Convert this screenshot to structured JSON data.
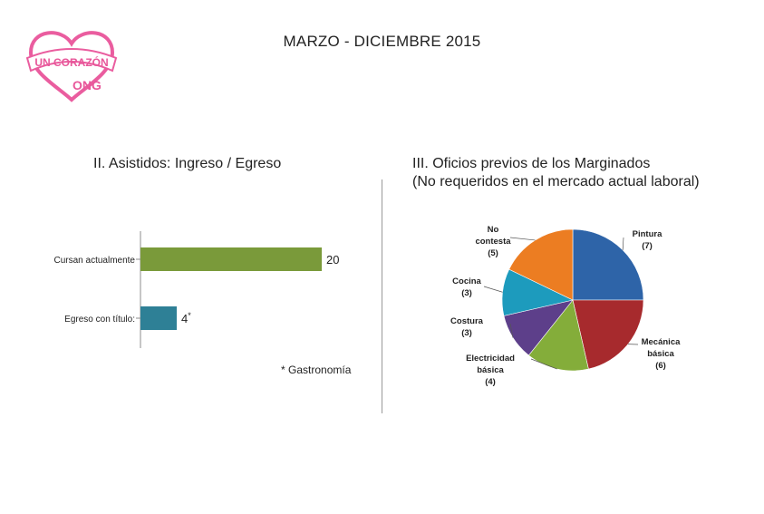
{
  "header": {
    "title": "MARZO - DICIEMBRE 2015",
    "logo_text": "UN CORAZÓN",
    "logo_subtext": "ONG"
  },
  "left_panel": {
    "title": "II. Asistidos: Ingreso / Egreso",
    "footnote": "* Gastronomía"
  },
  "right_panel": {
    "title_line1": "III. Oficios previos de los Marginados",
    "title_line2": "(No requeridos en el mercado actual laboral)"
  },
  "chart_data": [
    {
      "type": "bar",
      "orientation": "horizontal",
      "categories": [
        "Cursan actualmente",
        "Egreso con título:"
      ],
      "values": [
        20,
        4
      ],
      "value_labels": [
        "20",
        "4*"
      ],
      "colors": [
        "#7a9a3a",
        "#2e8096"
      ],
      "xlim": [
        0,
        20
      ],
      "grid": false,
      "legend": "none"
    },
    {
      "type": "pie",
      "slices": [
        {
          "label": "Pintura",
          "value": 7,
          "color": "#2e64a8"
        },
        {
          "label": "Mecánica básica",
          "value": 6,
          "color": "#a72a2d"
        },
        {
          "label": "Electricidad básica",
          "value": 4,
          "color": "#84ad3a"
        },
        {
          "label": "Costura",
          "value": 3,
          "color": "#5d3f8a"
        },
        {
          "label": "Cocina",
          "value": 3,
          "color": "#1d9bbd"
        },
        {
          "label": "No contesta",
          "value": 5,
          "color": "#ec7d22"
        }
      ],
      "legend": "none"
    }
  ]
}
